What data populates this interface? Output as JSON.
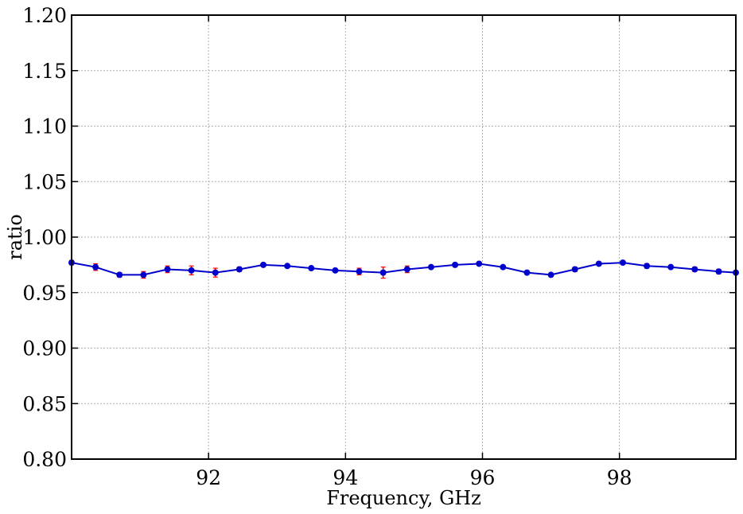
{
  "chart_data": {
    "type": "line",
    "title": "",
    "xlabel": "Frequency, GHz",
    "ylabel": "ratio",
    "xlim": [
      90.0,
      99.7
    ],
    "ylim": [
      0.8,
      1.2
    ],
    "x_ticks": [
      "92",
      "94",
      "96",
      "98"
    ],
    "y_ticks": [
      "0.80",
      "0.85",
      "0.90",
      "0.95",
      "1.00",
      "1.05",
      "1.10",
      "1.15",
      "1.20"
    ],
    "grid": true,
    "legend": false,
    "series": [
      {
        "color": "#0000cc",
        "error_color": "#ff0000",
        "x": [
          90.0,
          90.35,
          90.7,
          91.05,
          91.4,
          91.75,
          92.1,
          92.45,
          92.8,
          93.15,
          93.5,
          93.85,
          94.2,
          94.55,
          94.9,
          95.25,
          95.6,
          95.95,
          96.3,
          96.65,
          97.0,
          97.35,
          97.7,
          98.05,
          98.4,
          98.75,
          99.1,
          99.45,
          99.7
        ],
        "y": [
          0.977,
          0.973,
          0.966,
          0.966,
          0.971,
          0.97,
          0.968,
          0.971,
          0.975,
          0.974,
          0.972,
          0.97,
          0.969,
          0.968,
          0.971,
          0.973,
          0.975,
          0.976,
          0.973,
          0.968,
          0.966,
          0.971,
          0.976,
          0.977,
          0.974,
          0.973,
          0.971,
          0.969,
          0.968
        ],
        "yerr": [
          0.002,
          0.003,
          0.002,
          0.003,
          0.003,
          0.004,
          0.004,
          0.002,
          0.001,
          0.001,
          0.001,
          0.001,
          0.003,
          0.005,
          0.003,
          0.001,
          0.001,
          0.001,
          0.001,
          0.001,
          0.001,
          0.002,
          0.001,
          0.001,
          0.002,
          0.001,
          0.002,
          0.002,
          0.001
        ]
      }
    ]
  }
}
